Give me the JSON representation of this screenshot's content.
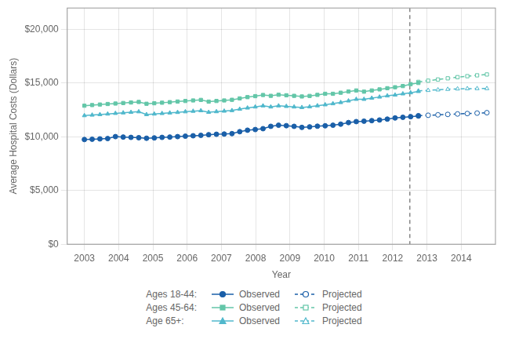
{
  "chart_data": {
    "type": "line",
    "xlabel": "Year",
    "ylabel": "Average Hospital Costs (Dollars)",
    "xlim": [
      2002.5,
      2015.0
    ],
    "xticks": [
      2003,
      2004,
      2005,
      2006,
      2007,
      2008,
      2009,
      2010,
      2011,
      2012,
      2013,
      2014
    ],
    "ylim": [
      0,
      22000
    ],
    "yticks": [
      {
        "value": 0,
        "label": "$0"
      },
      {
        "value": 5000,
        "label": "$5,000"
      },
      {
        "value": 10000,
        "label": "$10,000"
      },
      {
        "value": 15000,
        "label": "$15,000"
      },
      {
        "value": 20000,
        "label": "$20,000"
      }
    ],
    "grid": true,
    "legend": "bottom",
    "vlines": [
      {
        "x": 2012.5,
        "color": "#888888",
        "line_style": "dashed"
      }
    ],
    "series": [
      {
        "name": "Observed",
        "group": "Ages 18-44:",
        "color": "#1a5fa8",
        "marker": "circle",
        "line_style": "solid",
        "x": [
          2003,
          2003.226744,
          2003.453488,
          2003.680233,
          2003.906977,
          2004.133721,
          2004.360465,
          2004.587209,
          2004.813953,
          2005.040698,
          2005.267442,
          2005.494186,
          2005.72093,
          2005.947674,
          2006.174419,
          2006.401163,
          2006.627907,
          2006.854651,
          2007.081395,
          2007.30814,
          2007.534884,
          2007.761628,
          2007.988372,
          2008.215116,
          2008.44186,
          2008.668605,
          2008.895349,
          2009.122093,
          2009.348837,
          2009.575581,
          2009.802326,
          2010.02907,
          2010.255814,
          2010.482558,
          2010.709302,
          2010.936047,
          2011.162791,
          2011.389535,
          2011.616279,
          2011.843023,
          2012.069767,
          2012.296512,
          2012.523256,
          2012.75
        ],
        "values": [
          9750,
          9780,
          9810,
          9840,
          10020,
          9980,
          9950,
          9920,
          9870,
          9900,
          9950,
          9980,
          10020,
          10060,
          10100,
          10140,
          10200,
          10240,
          10260,
          10300,
          10480,
          10620,
          10680,
          10760,
          10980,
          11080,
          11040,
          10980,
          10880,
          10930,
          10990,
          11030,
          11080,
          11180,
          11330,
          11420,
          11460,
          11510,
          11570,
          11650,
          11760,
          11820,
          11880,
          11940
        ]
      },
      {
        "name": "Projected",
        "group": "Ages 18-44:",
        "color": "#1a5fa8",
        "marker": "circle_open",
        "line_style": "dashed",
        "x": [
          2012.75,
          2013.035714,
          2013.321429,
          2013.607143,
          2013.892857,
          2014.178571,
          2014.464286,
          2014.75
        ],
        "values": [
          11970,
          12010,
          12050,
          12090,
          12130,
          12170,
          12210,
          12250
        ]
      },
      {
        "name": "Observed",
        "group": "Ages 45-64:",
        "color": "#63c6a8",
        "marker": "square",
        "line_style": "solid",
        "x": [
          2003,
          2003.226744,
          2003.453488,
          2003.680233,
          2003.906977,
          2004.133721,
          2004.360465,
          2004.587209,
          2004.813953,
          2005.040698,
          2005.267442,
          2005.494186,
          2005.72093,
          2005.947674,
          2006.174419,
          2006.401163,
          2006.627907,
          2006.854651,
          2007.081395,
          2007.30814,
          2007.534884,
          2007.761628,
          2007.988372,
          2008.215116,
          2008.44186,
          2008.668605,
          2008.895349,
          2009.122093,
          2009.348837,
          2009.575581,
          2009.802326,
          2010.02907,
          2010.255814,
          2010.482558,
          2010.709302,
          2010.936047,
          2011.162791,
          2011.389535,
          2011.616279,
          2011.843023,
          2012.069767,
          2012.296512,
          2012.523256,
          2012.75
        ],
        "values": [
          12900,
          12960,
          13010,
          13060,
          13100,
          13150,
          13200,
          13250,
          13080,
          13130,
          13180,
          13230,
          13290,
          13340,
          13390,
          13440,
          13280,
          13340,
          13390,
          13450,
          13580,
          13700,
          13790,
          13900,
          13820,
          13920,
          13870,
          13820,
          13760,
          13810,
          13910,
          14010,
          14010,
          14110,
          14220,
          14320,
          14210,
          14320,
          14420,
          14530,
          14620,
          14730,
          14910,
          15020
        ]
      },
      {
        "name": "Projected",
        "group": "Ages 45-64:",
        "color": "#63c6a8",
        "marker": "square_open",
        "line_style": "dashed",
        "x": [
          2012.75,
          2013.035714,
          2013.321429,
          2013.607143,
          2013.892857,
          2014.178571,
          2014.464286,
          2014.75
        ],
        "values": [
          15120,
          15230,
          15340,
          15450,
          15560,
          15650,
          15730,
          15810
        ]
      },
      {
        "name": "Observed",
        "group": "Age 65+:",
        "color": "#50b8cc",
        "marker": "triangle",
        "line_style": "solid",
        "x": [
          2003,
          2003.226744,
          2003.453488,
          2003.680233,
          2003.906977,
          2004.133721,
          2004.360465,
          2004.587209,
          2004.813953,
          2005.040698,
          2005.267442,
          2005.494186,
          2005.72093,
          2005.947674,
          2006.174419,
          2006.401163,
          2006.627907,
          2006.854651,
          2007.081395,
          2007.30814,
          2007.534884,
          2007.761628,
          2007.988372,
          2008.215116,
          2008.44186,
          2008.668605,
          2008.895349,
          2009.122093,
          2009.348837,
          2009.575581,
          2009.802326,
          2010.02907,
          2010.255814,
          2010.482558,
          2010.709302,
          2010.936047,
          2011.162791,
          2011.389535,
          2011.616279,
          2011.843023,
          2012.069767,
          2012.296512,
          2012.523256,
          2012.75
        ],
        "values": [
          11980,
          12030,
          12080,
          12130,
          12190,
          12240,
          12290,
          12340,
          12080,
          12130,
          12180,
          12230,
          12280,
          12340,
          12390,
          12440,
          12290,
          12350,
          12400,
          12450,
          12580,
          12690,
          12790,
          12890,
          12790,
          12890,
          12840,
          12790,
          12740,
          12800,
          12900,
          12990,
          13090,
          13200,
          13350,
          13500,
          13500,
          13610,
          13710,
          13820,
          13900,
          14010,
          14110,
          14230
        ]
      },
      {
        "name": "Projected",
        "group": "Age 65+:",
        "color": "#50b8cc",
        "marker": "triangle_open",
        "line_style": "dashed",
        "x": [
          2012.75,
          2013.035714,
          2013.321429,
          2013.607143,
          2013.892857,
          2014.178571,
          2014.464286,
          2014.75
        ],
        "values": [
          14280,
          14330,
          14380,
          14430,
          14470,
          14490,
          14500,
          14500
        ]
      }
    ]
  }
}
